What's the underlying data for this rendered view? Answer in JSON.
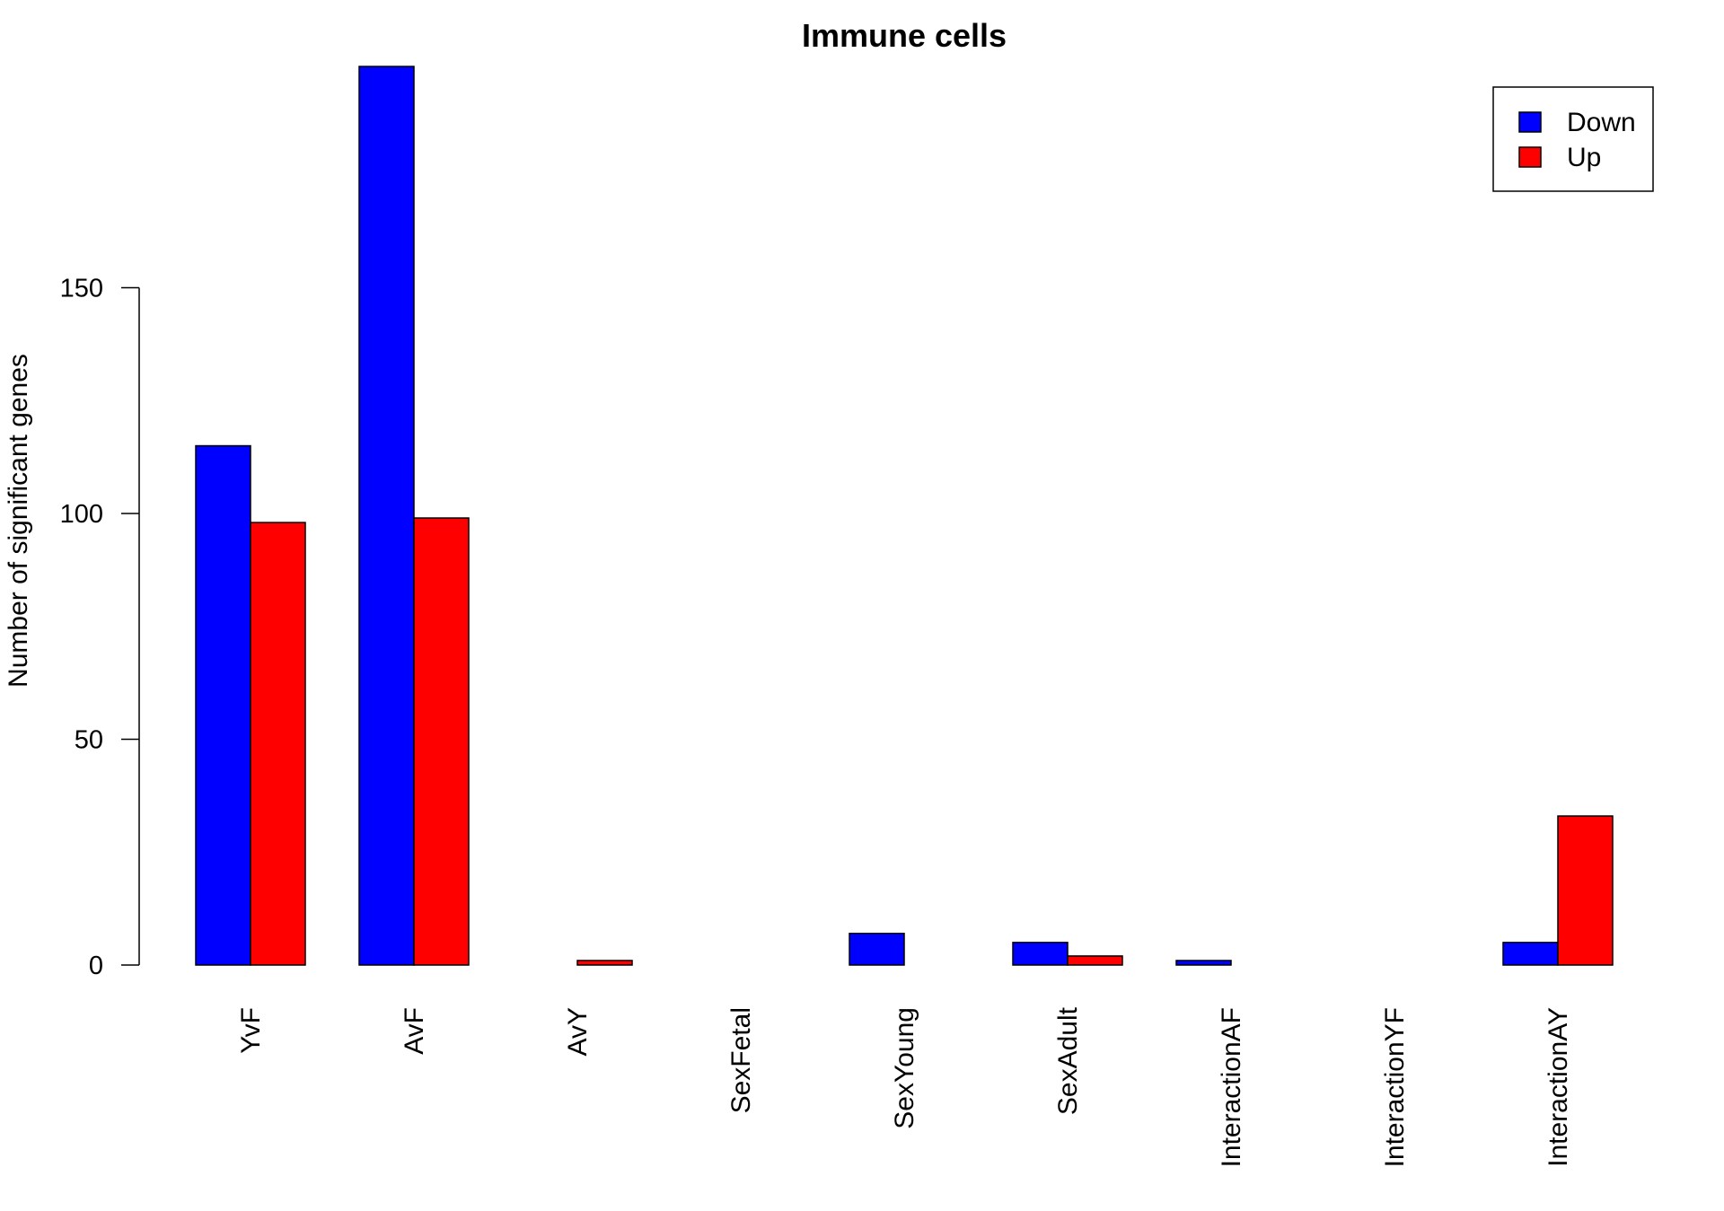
{
  "chart_data": {
    "type": "bar",
    "title": "Immune cells",
    "xlabel": "",
    "ylabel": "Number of significant genes",
    "categories": [
      "YvF",
      "AvF",
      "AvY",
      "SexFetal",
      "SexYoung",
      "SexAdult",
      "InteractionAF",
      "InteractionYF",
      "InteractionAY"
    ],
    "series": [
      {
        "name": "Down",
        "color": "#0000FF",
        "values": [
          115,
          199,
          0,
          0,
          7,
          5,
          1,
          0,
          5
        ]
      },
      {
        "name": "Up",
        "color": "#FF0000",
        "values": [
          98,
          99,
          1,
          0,
          0,
          2,
          0,
          0,
          33
        ]
      }
    ],
    "yticks": [
      0,
      50,
      100,
      150
    ],
    "ylim": [
      0,
      199
    ],
    "legend_position": "top-right",
    "grid": false
  }
}
